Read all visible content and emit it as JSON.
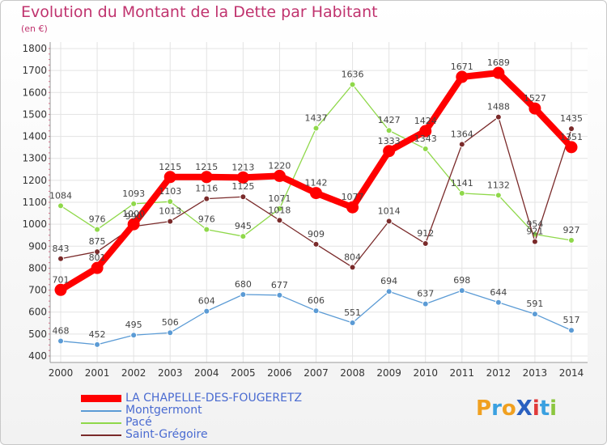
{
  "title": "Evolution du Montant de la Dette par Habitant",
  "subtitle": "(en €)",
  "logo": "ProXiti",
  "chart_data": {
    "type": "line",
    "title": "Evolution du Montant de la Dette par Habitant",
    "subtitle": "(en €)",
    "xlabel": "",
    "ylabel": "",
    "ylim": [
      400,
      1800
    ],
    "yticks": [
      400,
      500,
      600,
      700,
      800,
      900,
      1000,
      1100,
      1200,
      1300,
      1400,
      1500,
      1600,
      1700,
      1800
    ],
    "grid": true,
    "legend_position": "bottom-left",
    "categories": [
      "2000",
      "2001",
      "2002",
      "2003",
      "2004",
      "2005",
      "2006",
      "2007",
      "2008",
      "2009",
      "2010",
      "2011",
      "2012",
      "2013",
      "2014"
    ],
    "series": [
      {
        "name": "LA CHAPELLE-DES-FOUGERETZ",
        "color": "#ff0000",
        "values": [
          701,
          801,
          1000,
          1215,
          1215,
          1213,
          1220,
          1142,
          1077,
          1333,
          1424,
          1671,
          1689,
          1527,
          1351
        ]
      },
      {
        "name": "Montgermont",
        "color": "#5b9bd5",
        "values": [
          468,
          452,
          495,
          506,
          604,
          680,
          677,
          606,
          551,
          694,
          637,
          698,
          644,
          591,
          517
        ]
      },
      {
        "name": "Pacé",
        "color": "#8fd84a",
        "values": [
          1084,
          976,
          1093,
          1103,
          976,
          945,
          1071,
          1437,
          1636,
          1427,
          1343,
          1141,
          1132,
          954,
          927
        ]
      },
      {
        "name": "Saint-Grégoire",
        "color": "#7a2a2a",
        "values": [
          843,
          875,
          990,
          1013,
          1116,
          1125,
          1018,
          909,
          804,
          1014,
          912,
          1364,
          1488,
          921,
          1435
        ]
      }
    ],
    "data_labels": [
      [
        "701",
        "801",
        "1000",
        "1215",
        "1215",
        "1213",
        "1220",
        "1142",
        "1077",
        "1333",
        "1424",
        "1671",
        "1689",
        "1527",
        "1351"
      ],
      [
        "468",
        "452",
        "495",
        "506",
        "604",
        "680",
        "677",
        "606",
        "551",
        "694",
        "637",
        "698",
        "644",
        "591",
        "517"
      ],
      [
        "1084",
        "976",
        "1093",
        "1103",
        "976",
        "945",
        "1071",
        "1437",
        "1636",
        "1427",
        "1343",
        "1141",
        "1132",
        "954",
        "927"
      ],
      [
        "843",
        "875",
        "990",
        "1013",
        "1116",
        "1125",
        "1018",
        "909",
        "804",
        "1014",
        "912",
        "1364",
        "1488",
        "921",
        "1435"
      ]
    ]
  }
}
